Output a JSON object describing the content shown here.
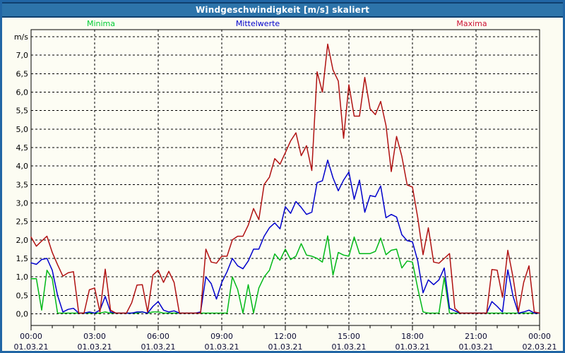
{
  "window": {
    "title": "Windgeschwindigkeit [m/s] skaliert"
  },
  "chart_data": {
    "type": "line",
    "title": "Windgeschwindigkeit [m/s] skaliert",
    "ylabel": "m/s",
    "ylim": [
      0,
      7.5
    ],
    "y_tick_step": 0.5,
    "y_decimal_separator": ",",
    "grid": "dashed",
    "legend_position": "top",
    "x_unit": "hours",
    "x_range_hours": [
      0,
      24
    ],
    "x_step_hours": 0.25,
    "x_major_tick_hours": 3,
    "x_ticks": [
      {
        "time": "00:00",
        "date": "01.03.21"
      },
      {
        "time": "03:00",
        "date": "01.03.21"
      },
      {
        "time": "06:00",
        "date": "01.03.21"
      },
      {
        "time": "09:00",
        "date": "01.03.21"
      },
      {
        "time": "12:00",
        "date": "01.03.21"
      },
      {
        "time": "15:00",
        "date": "01.03.21"
      },
      {
        "time": "18:00",
        "date": "01.03.21"
      },
      {
        "time": "21:00",
        "date": "01.03.21"
      },
      {
        "time": "00:00",
        "date": "02.03.21"
      }
    ],
    "series": [
      {
        "name": "Minima",
        "color": "#00b818",
        "legend_color": "#00cc33",
        "values": [
          0.95,
          0.95,
          0.1,
          1.18,
          0.95,
          0.02,
          0.02,
          0.02,
          0.02,
          0.02,
          0.02,
          0.02,
          0.02,
          0.02,
          0.05,
          0.02,
          0.02,
          0.02,
          0.02,
          0.02,
          0.02,
          0.05,
          0.02,
          0.05,
          0.05,
          0.02,
          0.02,
          0.02,
          0.02,
          0.02,
          0.02,
          0.02,
          0.02,
          0.02,
          0.02,
          0.02,
          0.02,
          0.02,
          1.0,
          0.66,
          0.02,
          0.79,
          0.02,
          0.7,
          1.0,
          1.18,
          1.62,
          1.45,
          1.75,
          1.47,
          1.56,
          1.9,
          1.59,
          1.56,
          1.5,
          1.4,
          2.11,
          1.05,
          1.66,
          1.59,
          1.56,
          2.08,
          1.63,
          1.63,
          1.63,
          1.69,
          2.05,
          1.6,
          1.72,
          1.75,
          1.24,
          1.43,
          1.4,
          0.69,
          0.05,
          0.02,
          0.02,
          0.02,
          0.98,
          0.02,
          0.02,
          0.02,
          0.02,
          0.02,
          0.02,
          0.02,
          0.02,
          0.02,
          0.02,
          0.02,
          0.02,
          0.02,
          0.02,
          0.02,
          0.02,
          0.02,
          0.02
        ]
      },
      {
        "name": "Mittelwerte",
        "color": "#0000cc",
        "legend_color": "#0000cc",
        "values": [
          1.38,
          1.34,
          1.47,
          1.5,
          1.18,
          0.5,
          0.05,
          0.12,
          0.15,
          0.02,
          0.02,
          0.05,
          0.02,
          0.1,
          0.47,
          0.05,
          0.02,
          0.02,
          0.02,
          0.02,
          0.05,
          0.05,
          0.02,
          0.2,
          0.33,
          0.1,
          0.05,
          0.08,
          0.02,
          0.02,
          0.02,
          0.02,
          0.05,
          1.0,
          0.82,
          0.4,
          0.85,
          1.14,
          1.5,
          1.3,
          1.22,
          1.43,
          1.75,
          1.75,
          2.1,
          2.33,
          2.46,
          2.3,
          2.9,
          2.72,
          3.04,
          2.88,
          2.69,
          2.75,
          3.55,
          3.6,
          4.16,
          3.68,
          3.33,
          3.62,
          3.84,
          3.1,
          3.62,
          2.75,
          3.2,
          3.17,
          3.46,
          2.6,
          2.69,
          2.62,
          2.14,
          1.98,
          1.95,
          1.43,
          0.57,
          0.92,
          0.79,
          0.92,
          1.24,
          0.15,
          0.08,
          0.02,
          0.02,
          0.02,
          0.02,
          0.02,
          0.02,
          0.33,
          0.2,
          0.05,
          1.19,
          0.47,
          0.02,
          0.05,
          0.1,
          0.02,
          0.02
        ]
      },
      {
        "name": "Maxima",
        "color": "#b01212",
        "legend_color": "#cc1133",
        "values": [
          2.08,
          1.83,
          1.97,
          2.1,
          1.66,
          1.33,
          1.02,
          1.11,
          1.14,
          0.02,
          0.02,
          0.65,
          0.7,
          0.05,
          1.21,
          0.1,
          0.02,
          0.02,
          0.02,
          0.3,
          0.78,
          0.79,
          0.05,
          1.05,
          1.18,
          0.85,
          1.15,
          0.85,
          0.02,
          0.02,
          0.02,
          0.02,
          0.02,
          1.75,
          1.4,
          1.37,
          1.56,
          1.56,
          2.0,
          2.1,
          2.1,
          2.4,
          2.85,
          2.55,
          3.5,
          3.7,
          4.2,
          4.05,
          4.36,
          4.68,
          4.9,
          4.28,
          4.55,
          3.88,
          6.55,
          6.0,
          7.3,
          6.6,
          6.3,
          4.75,
          6.2,
          5.35,
          5.35,
          6.4,
          5.55,
          5.39,
          5.75,
          5.1,
          3.85,
          4.8,
          4.26,
          3.49,
          3.43,
          2.6,
          1.6,
          2.33,
          1.4,
          1.37,
          1.5,
          1.63,
          0.15,
          0.02,
          0.02,
          0.02,
          0.02,
          0.02,
          0.02,
          1.2,
          1.18,
          0.45,
          1.72,
          0.98,
          0.05,
          0.85,
          1.3,
          0.05,
          0.02
        ]
      }
    ]
  }
}
